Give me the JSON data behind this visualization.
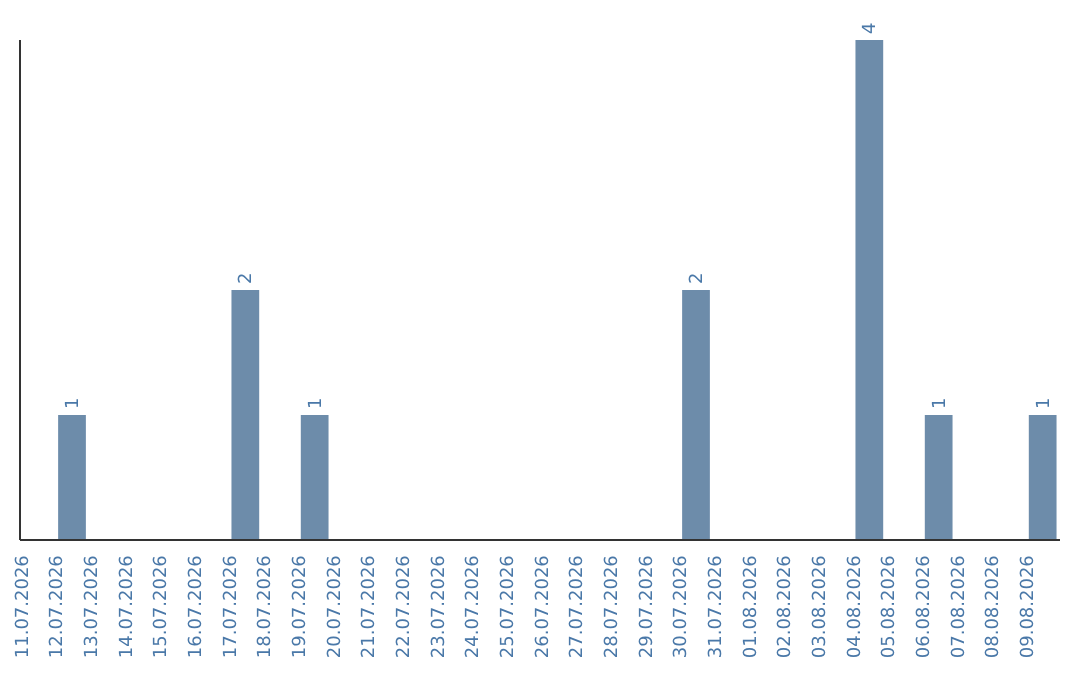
{
  "chart_data": {
    "type": "bar",
    "categories": [
      "11.07.2026",
      "12.07.2026",
      "13.07.2026",
      "14.07.2026",
      "15.07.2026",
      "16.07.2026",
      "17.07.2026",
      "18.07.2026",
      "19.07.2026",
      "20.07.2026",
      "21.07.2026",
      "22.07.2026",
      "23.07.2026",
      "24.07.2026",
      "25.07.2026",
      "26.07.2026",
      "27.07.2026",
      "28.07.2026",
      "29.07.2026",
      "30.07.2026",
      "31.07.2026",
      "01.08.2026",
      "02.08.2026",
      "03.08.2026",
      "04.08.2026",
      "05.08.2026",
      "06.08.2026",
      "07.08.2026",
      "08.08.2026",
      "09.08.2026"
    ],
    "values": [
      0,
      1,
      0,
      0,
      0,
      0,
      2,
      0,
      1,
      0,
      0,
      0,
      0,
      0,
      0,
      0,
      0,
      0,
      0,
      2,
      0,
      0,
      0,
      0,
      4,
      0,
      1,
      0,
      0,
      1
    ],
    "value_labels": [
      null,
      "1",
      null,
      null,
      null,
      null,
      "2",
      null,
      "1",
      null,
      null,
      null,
      null,
      null,
      null,
      null,
      null,
      null,
      null,
      "2",
      null,
      null,
      null,
      null,
      "4",
      null,
      "1",
      null,
      null,
      "1"
    ],
    "color": "#6d8caa",
    "ylim": [
      0,
      4
    ],
    "tick_labels": "x"
  }
}
